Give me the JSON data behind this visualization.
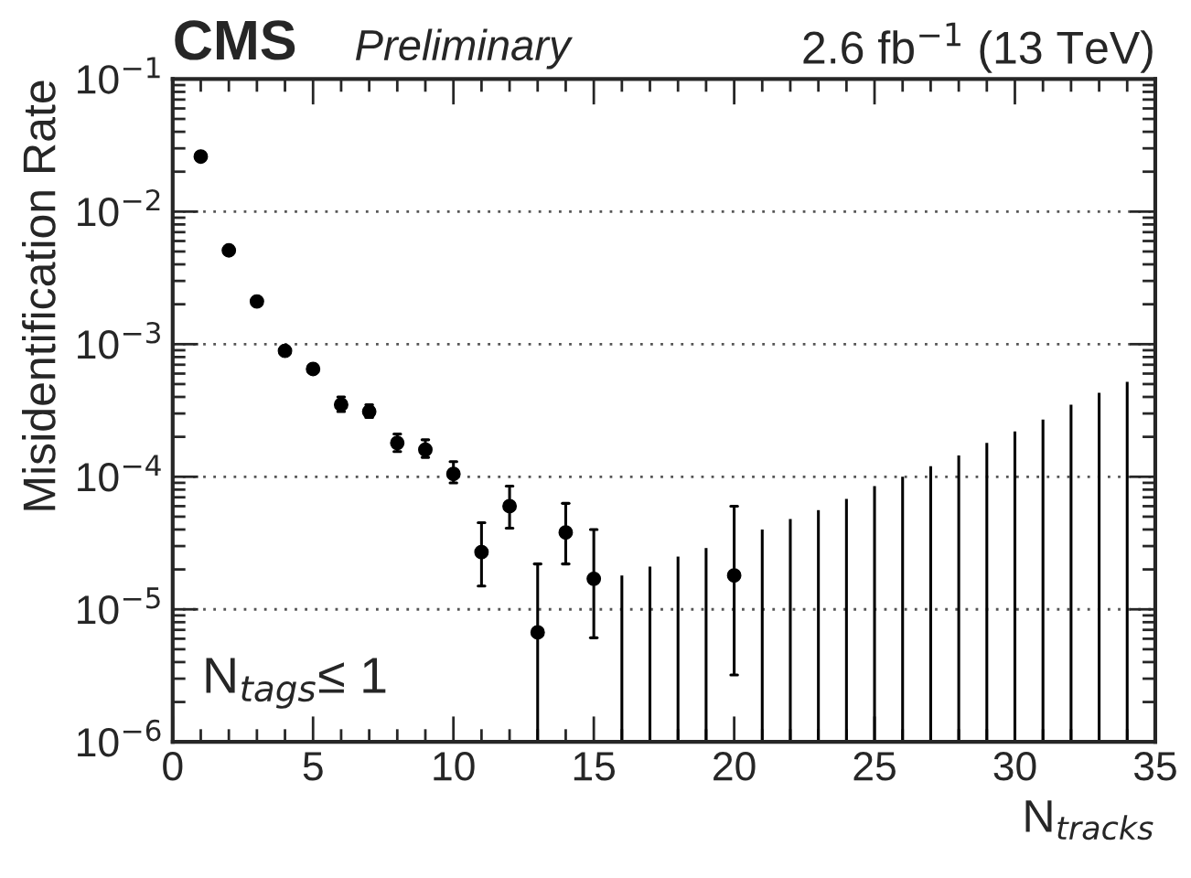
{
  "chart_data": {
    "type": "scatter",
    "title": "2.6 fb$^{−1}$ (13 TeV)",
    "xlabel": "N$_{tracks}$",
    "ylabel": "Misidentification Rate",
    "annotations": [
      "CMS",
      "Preliminary",
      "N$_{tags}$≤ 1"
    ],
    "series": [
      {
        "color": "#000000",
        "x": [
          1,
          2,
          3,
          4,
          5,
          6,
          7,
          8,
          9,
          10,
          11,
          12,
          13,
          14,
          15,
          20
        ],
        "values": [
          0.026,
          0.0051,
          0.0021,
          0.00089,
          0.00065,
          0.00035,
          0.00031,
          0.00018,
          0.00016,
          0.000105,
          2.7e-05,
          6e-05,
          6.7e-06,
          3.8e-05,
          1.7e-05,
          1.8e-05
        ],
        "errors": [
          null,
          null,
          null,
          null,
          null,
          [
            0.00031,
            0.0004
          ],
          [
            0.00028,
            0.00035
          ],
          [
            0.000155,
            0.00021
          ],
          [
            0.00014,
            0.00019
          ],
          [
            9e-05,
            0.00013
          ],
          [
            1.5e-05,
            4.5e-05
          ],
          [
            4.1e-05,
            8.5e-05
          ],
          [
            1e-06,
            2.2e-05
          ],
          [
            2.2e-05,
            6.3e-05
          ],
          [
            6.1e-06,
            4e-05
          ],
          [
            3.2e-06,
            6e-05
          ]
        ]
      },
      {
        "type": "bar",
        "color": "#000000",
        "x": [
          16,
          17,
          18,
          19,
          21,
          22,
          23,
          24,
          25,
          26,
          27,
          28,
          29,
          30,
          31,
          32,
          33,
          34
        ],
        "base": [
          1e-06,
          1e-06,
          1e-06,
          1e-06,
          1e-06,
          1e-06,
          1e-06,
          1e-06,
          1e-06,
          1e-06,
          1e-06,
          1e-06,
          1e-06,
          1e-06,
          1e-06,
          1e-06,
          1e-06,
          1e-06
        ],
        "values": [
          1.7e-05,
          2e-05,
          2.4e-05,
          2.8e-05,
          3.9e-05,
          4.7e-05,
          5.5e-05,
          6.7e-05,
          8.4e-05,
          9.9e-05,
          0.000119,
          0.000144,
          0.000179,
          0.000219,
          0.000269,
          0.000349,
          0.000429,
          0.000519
        ]
      }
    ],
    "xlim": [
      0,
      35
    ],
    "xticks": [
      0,
      5,
      10,
      15,
      20,
      25,
      30,
      35
    ],
    "ylim": [
      1e-06,
      0.1
    ],
    "yticks": [
      {
        "value": 1e-06,
        "label": "10$^{−6}$"
      },
      {
        "value": 1e-05,
        "label": "10$^{−5}$"
      },
      {
        "value": 0.0001,
        "label": "10$^{−4}$"
      },
      {
        "value": 0.001,
        "label": "10$^{−3}$"
      },
      {
        "value": 0.01,
        "label": "10$^{−2}$"
      },
      {
        "value": 0.1,
        "label": "10$^{−1}$"
      }
    ],
    "log": "y",
    "grid": "y",
    "marker": "circle",
    "legend": false
  }
}
